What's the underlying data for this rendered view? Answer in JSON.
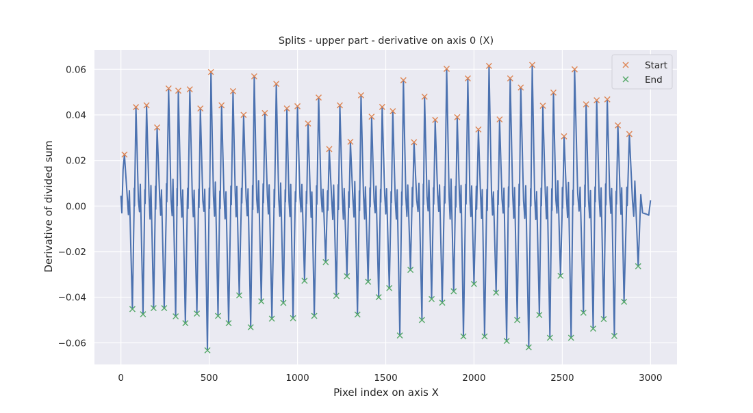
{
  "chart_data": {
    "type": "line",
    "title": "Splits - upper part - derivative on axis 0 (X)",
    "xlabel": "Pixel index on axis X",
    "ylabel": "Derivative of divided sum",
    "xlim": [
      -150,
      3150
    ],
    "ylim": [
      -0.0695,
      0.0685
    ],
    "x_ticks": [
      0,
      500,
      1000,
      1500,
      2000,
      2500,
      3000
    ],
    "y_ticks": [
      -0.06,
      -0.04,
      -0.02,
      0.0,
      0.02,
      0.04,
      0.06
    ],
    "x_tick_labels": [
      "0",
      "500",
      "1000",
      "1500",
      "2000",
      "2500",
      "3000"
    ],
    "y_tick_labels": [
      "−0.06",
      "−0.04",
      "−0.02",
      "0.00",
      "0.02",
      "0.04",
      "0.06"
    ],
    "grid": true,
    "background": "#EAEAF2",
    "legend": {
      "position": "top-right",
      "entries": [
        "Start",
        "End"
      ]
    },
    "series": [
      {
        "name": "Start",
        "marker": "x",
        "color": "#DD8452",
        "points": [
          [
            20,
            0.0226
          ],
          [
            85,
            0.0434
          ],
          [
            145,
            0.0442
          ],
          [
            205,
            0.0345
          ],
          [
            270,
            0.0516
          ],
          [
            325,
            0.0506
          ],
          [
            390,
            0.0512
          ],
          [
            450,
            0.0428
          ],
          [
            510,
            0.0588
          ],
          [
            570,
            0.0442
          ],
          [
            635,
            0.0504
          ],
          [
            695,
            0.04
          ],
          [
            755,
            0.0569
          ],
          [
            815,
            0.0408
          ],
          [
            880,
            0.0536
          ],
          [
            940,
            0.0428
          ],
          [
            1000,
            0.0438
          ],
          [
            1060,
            0.0362
          ],
          [
            1120,
            0.0476
          ],
          [
            1180,
            0.025
          ],
          [
            1240,
            0.0442
          ],
          [
            1300,
            0.0282
          ],
          [
            1360,
            0.0486
          ],
          [
            1420,
            0.0392
          ],
          [
            1480,
            0.0435
          ],
          [
            1540,
            0.0416
          ],
          [
            1600,
            0.0552
          ],
          [
            1660,
            0.028
          ],
          [
            1720,
            0.048
          ],
          [
            1780,
            0.0378
          ],
          [
            1845,
            0.0602
          ],
          [
            1905,
            0.039
          ],
          [
            1965,
            0.056
          ],
          [
            2025,
            0.0336
          ],
          [
            2085,
            0.0615
          ],
          [
            2145,
            0.038
          ],
          [
            2205,
            0.056
          ],
          [
            2265,
            0.052
          ],
          [
            2330,
            0.0619
          ],
          [
            2390,
            0.044
          ],
          [
            2450,
            0.0498
          ],
          [
            2510,
            0.0306
          ],
          [
            2570,
            0.06
          ],
          [
            2635,
            0.0446
          ],
          [
            2695,
            0.0464
          ],
          [
            2755,
            0.0468
          ],
          [
            2815,
            0.0354
          ],
          [
            2880,
            0.0316
          ]
        ]
      },
      {
        "name": "End",
        "marker": "x",
        "color": "#55A868",
        "points": [
          [
            65,
            -0.0452
          ],
          [
            125,
            -0.0475
          ],
          [
            185,
            -0.0448
          ],
          [
            245,
            -0.0448
          ],
          [
            310,
            -0.0484
          ],
          [
            365,
            -0.0514
          ],
          [
            430,
            -0.0472
          ],
          [
            490,
            -0.0633
          ],
          [
            550,
            -0.0482
          ],
          [
            610,
            -0.0514
          ],
          [
            670,
            -0.0392
          ],
          [
            735,
            -0.0532
          ],
          [
            795,
            -0.0418
          ],
          [
            855,
            -0.0494
          ],
          [
            920,
            -0.0425
          ],
          [
            975,
            -0.0492
          ],
          [
            1040,
            -0.0328
          ],
          [
            1095,
            -0.0482
          ],
          [
            1160,
            -0.0246
          ],
          [
            1220,
            -0.0394
          ],
          [
            1280,
            -0.0308
          ],
          [
            1340,
            -0.0476
          ],
          [
            1400,
            -0.0332
          ],
          [
            1460,
            -0.04
          ],
          [
            1520,
            -0.036
          ],
          [
            1580,
            -0.0568
          ],
          [
            1640,
            -0.028
          ],
          [
            1705,
            -0.05
          ],
          [
            1760,
            -0.0408
          ],
          [
            1820,
            -0.0424
          ],
          [
            1885,
            -0.0374
          ],
          [
            1940,
            -0.0572
          ],
          [
            2000,
            -0.0342
          ],
          [
            2060,
            -0.0572
          ],
          [
            2125,
            -0.038
          ],
          [
            2185,
            -0.0592
          ],
          [
            2245,
            -0.05
          ],
          [
            2310,
            -0.062
          ],
          [
            2370,
            -0.0478
          ],
          [
            2430,
            -0.0578
          ],
          [
            2490,
            -0.0306
          ],
          [
            2550,
            -0.0578
          ],
          [
            2620,
            -0.0468
          ],
          [
            2675,
            -0.0538
          ],
          [
            2735,
            -0.0496
          ],
          [
            2795,
            -0.057
          ],
          [
            2850,
            -0.042
          ],
          [
            2930,
            -0.0264
          ]
        ]
      }
    ],
    "line_color": "#4C72B0",
    "line_boundary": {
      "start": [
        [
          0,
          0.0045
        ],
        [
          5,
          -0.003
        ],
        [
          12,
          0.016
        ]
      ],
      "end": [
        [
          2945,
          0.005
        ],
        [
          2955,
          -0.003
        ],
        [
          2975,
          -0.0035
        ],
        [
          2990,
          -0.004
        ],
        [
          3000,
          0.0025
        ]
      ]
    }
  }
}
